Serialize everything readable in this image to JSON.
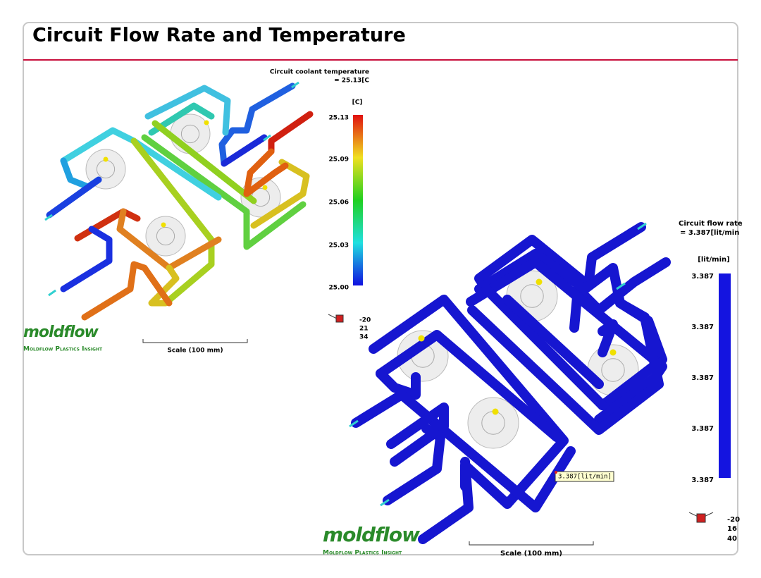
{
  "header": {
    "title": "Circuit Flow Rate and Temperature"
  },
  "left_panel": {
    "result_title": "Circuit coolant temperature",
    "result_value": "= 25.13[C",
    "legend_unit": "[C]",
    "legend_ticks": [
      "25.13",
      "25.09",
      "25.06",
      "25.03",
      "25.00"
    ],
    "triad_labels": [
      "-20",
      "21",
      "34"
    ],
    "scale_label": "Scale (100 mm)",
    "logo": "moldflow",
    "logo_subtitle": "Moldflow Plastics Insight"
  },
  "right_panel": {
    "result_title": "Circuit flow rate",
    "result_value": "= 3.387[lit/min",
    "legend_unit": "[lit/min]",
    "legend_ticks": [
      "3.387",
      "3.387",
      "3.387",
      "3.387",
      "3.387"
    ],
    "tooltip": "3.387[lit/min]",
    "triad_labels": [
      "-20",
      "16",
      "40"
    ],
    "scale_label": "Scale (100 mm)",
    "logo": "moldflow",
    "logo_subtitle": "Moldflow Plastics Insight"
  }
}
